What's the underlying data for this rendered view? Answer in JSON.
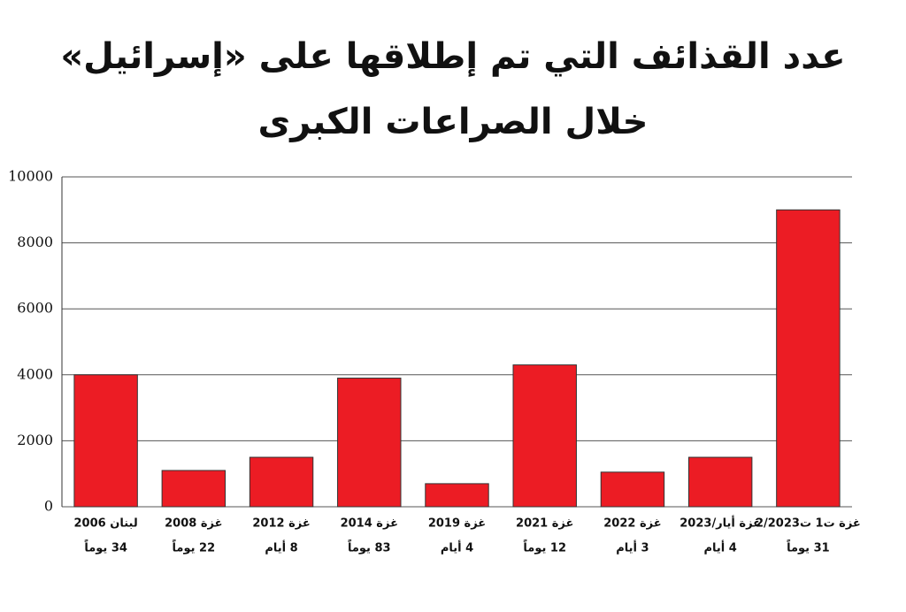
{
  "chart_data": {
    "type": "bar",
    "title": [
      "عدد القذائف التي تم إطلاقها على «إسرائيل»",
      "خلال الصراعات الكبرى"
    ],
    "categories": [
      "لبنان 2006",
      "غزة 2008",
      "غزة 2012",
      "غزة 2014",
      "غزة 2019",
      "غزة 2021",
      "غزة 2022",
      "غزة أيار/2023",
      "غزة ت1 ت2/2023"
    ],
    "sublabels": [
      "34 يوماً",
      "22 يوماً",
      "8 أيام",
      "83 يوماً",
      "4 أيام",
      "12 يوماً",
      "3 أيام",
      "4 أيام",
      "31 يوماً"
    ],
    "values": [
      4000,
      1100,
      1500,
      3900,
      700,
      4300,
      1050,
      1500,
      9000
    ],
    "color": "#ec1c24",
    "ylim": [
      0,
      10000
    ],
    "yticks": [
      0,
      2000,
      4000,
      6000,
      8000,
      10000
    ],
    "grid": true
  }
}
